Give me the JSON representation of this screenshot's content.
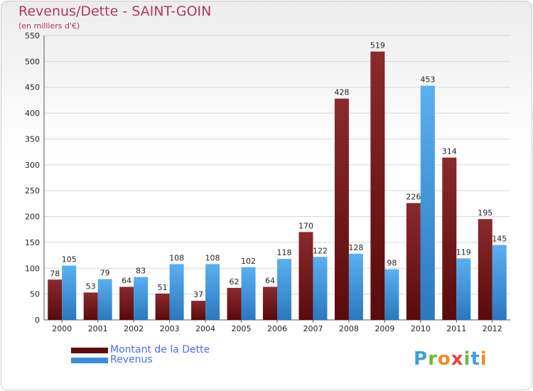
{
  "title": "Revenus/Dette - SAINT-GOIN",
  "subtitle": "(en milliers d'€)",
  "colors": {
    "dette": "#7a1518",
    "revenus": "#3a8fd8",
    "title": "#b03a5b",
    "legend_text": "#4a6cf5"
  },
  "chart_data": {
    "type": "bar",
    "categories": [
      "2000",
      "2001",
      "2002",
      "2003",
      "2004",
      "2005",
      "2006",
      "2007",
      "2008",
      "2009",
      "2010",
      "2011",
      "2012"
    ],
    "series": [
      {
        "name": "Montant de la Dette",
        "values": [
          78,
          53,
          64,
          51,
          37,
          62,
          64,
          170,
          428,
          519,
          226,
          314,
          195
        ]
      },
      {
        "name": "Revenus",
        "values": [
          105,
          79,
          83,
          108,
          108,
          102,
          118,
          122,
          128,
          98,
          453,
          119,
          145
        ]
      }
    ],
    "ylim": [
      0,
      550
    ],
    "yticks": [
      0,
      50,
      100,
      150,
      200,
      250,
      300,
      350,
      400,
      450,
      500,
      550
    ],
    "grid": true,
    "legend": "bottom-left"
  },
  "legend": {
    "items": [
      {
        "label": "Montant de la Dette"
      },
      {
        "label": "Revenus"
      }
    ]
  },
  "logo": {
    "text": "Proxiti"
  }
}
